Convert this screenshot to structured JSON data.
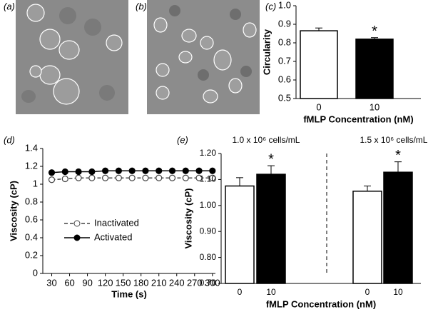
{
  "images": [
    {
      "panel": "(a)"
    },
    {
      "panel": "(b)"
    }
  ],
  "chart_data": [
    {
      "type": "bar",
      "panel": "(c)",
      "categories": [
        "0",
        "10"
      ],
      "values": [
        0.865,
        0.82
      ],
      "errors": [
        0.015,
        0.008
      ],
      "colors": [
        "#ffffff",
        "#000000"
      ],
      "markers": [
        null,
        "*"
      ],
      "ylabel": "Circularity",
      "xlabel": "fMLP Concentration (nM)",
      "ylim": [
        0.5,
        1.0
      ],
      "yticks": [
        0.5,
        0.6,
        0.7,
        0.8,
        0.9,
        {
          "value": 1,
          "label": "1.0"
        }
      ]
    },
    {
      "type": "line",
      "panel": "(d)",
      "x": [
        30,
        52.5,
        75,
        97.5,
        120,
        142.5,
        165,
        187.5,
        210,
        232.5,
        255,
        277.5,
        300
      ],
      "series": [
        {
          "name": "Inactivated",
          "color": "#444444",
          "marker_fill": "#ffffff",
          "dashed": true,
          "values": [
            1.05,
            1.06,
            1.07,
            1.07,
            1.07,
            1.07,
            1.07,
            1.07,
            1.07,
            1.07,
            1.07,
            1.07,
            1.07
          ]
        },
        {
          "name": "Activated",
          "color": "#000000",
          "marker_fill": "#000000",
          "dashed": false,
          "values": [
            1.13,
            1.14,
            1.14,
            1.14,
            1.15,
            1.15,
            1.15,
            1.15,
            1.15,
            1.15,
            1.15,
            1.15,
            1.15
          ]
        }
      ],
      "ylabel": "Viscosity (cP)",
      "xlabel": "Time (s)",
      "xlim": [
        15,
        305
      ],
      "xticks": [
        30,
        60,
        90,
        120,
        150,
        180,
        210,
        240,
        270,
        300
      ],
      "ylim": [
        0,
        1.4
      ],
      "yticks": [
        0,
        0.2,
        0.4,
        0.6,
        0.8,
        1,
        1.2,
        1.4
      ]
    },
    {
      "type": "bar",
      "panel": "(e)",
      "groups": [
        "1.0 x 10⁶ cells/mL",
        "1.5 x 10⁶ cells/mL"
      ],
      "categories": [
        "0",
        "10",
        "0",
        "10"
      ],
      "values": [
        1.075,
        1.12,
        1.055,
        1.128
      ],
      "errors": [
        0.032,
        0.033,
        0.02,
        0.04
      ],
      "colors": [
        "#ffffff",
        "#000000",
        "#ffffff",
        "#000000"
      ],
      "markers": [
        null,
        "*",
        null,
        "*"
      ],
      "ylabel": "Viscosity (cP)",
      "xlabel": "fMLP Concentration (nM)",
      "ylim": [
        0.7,
        1.2
      ],
      "yticks": [
        {
          "value": 0.7,
          "label": "0.70"
        },
        {
          "value": 0.8,
          "label": "0.80"
        },
        {
          "value": 0.9,
          "label": "0.90"
        },
        {
          "value": 1,
          "label": "1.00"
        },
        {
          "value": 1.1,
          "label": "1.10"
        },
        {
          "value": 1.2,
          "label": "1.20"
        }
      ]
    }
  ]
}
